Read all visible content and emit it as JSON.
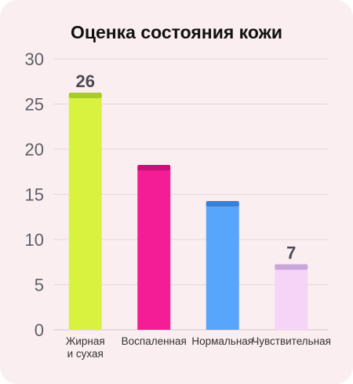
{
  "chart_data": {
    "type": "bar",
    "title": "Оценка состояния кожи",
    "categories": [
      "Жирная\nи сухая",
      "Воспаленная",
      "Нормальная",
      "Чувствительная"
    ],
    "values": [
      26,
      18,
      14,
      7
    ],
    "data_labels": [
      "26",
      "",
      "",
      "7"
    ],
    "ylim": [
      0,
      30
    ],
    "yticks": [
      0,
      5,
      10,
      15,
      20,
      25,
      30
    ],
    "grid": true,
    "colors": [
      "#d9f23f",
      "#f51d95",
      "#58a6fb",
      "#f5d4f8"
    ],
    "top_colors": [
      "#a9cc2c",
      "#c8117a",
      "#3a80d6",
      "#c9a6da"
    ]
  }
}
